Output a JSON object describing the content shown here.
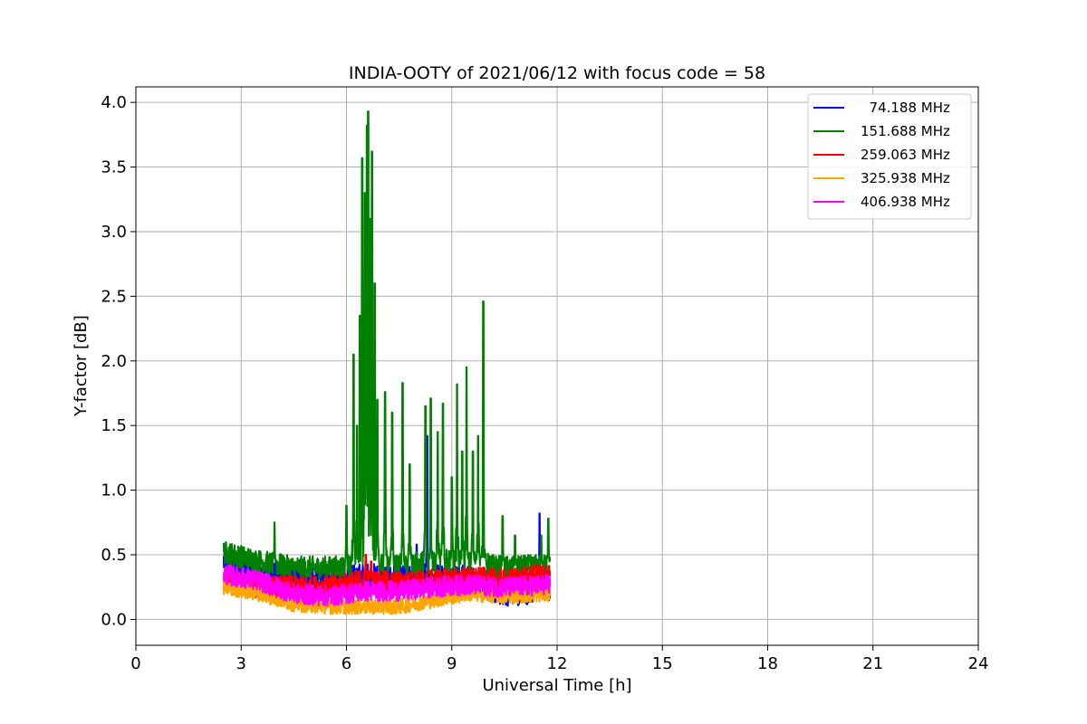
{
  "chart_data": {
    "type": "line",
    "title": "INDIA-OOTY of 2021/06/12 with focus code = 58",
    "xlabel": "Universal Time [h]",
    "ylabel": "Y-factor [dB]",
    "xlim": [
      0,
      24
    ],
    "ylim": [
      -0.2,
      4.12
    ],
    "xticks": [
      0,
      3,
      6,
      9,
      12,
      15,
      18,
      21,
      24
    ],
    "xtick_labels": [
      "0",
      "3",
      "6",
      "9",
      "12",
      "15",
      "18",
      "21",
      "24"
    ],
    "yticks": [
      0.0,
      0.5,
      1.0,
      1.5,
      2.0,
      2.5,
      3.0,
      3.5,
      4.0
    ],
    "ytick_labels": [
      "0.0",
      "0.5",
      "1.0",
      "1.5",
      "2.0",
      "2.5",
      "3.0",
      "3.5",
      "4.0"
    ],
    "grid": true,
    "legend_position": "top-right",
    "x_range_data": [
      2.5,
      11.8
    ],
    "series": [
      {
        "name": "  74.188 MHz",
        "color": "#0000ff",
        "base": [
          [
            2.5,
            0.45
          ],
          [
            3.5,
            0.35
          ],
          [
            4.5,
            0.3
          ],
          [
            5.5,
            0.28
          ],
          [
            6.5,
            0.32
          ],
          [
            7.5,
            0.3
          ],
          [
            8.5,
            0.32
          ],
          [
            9.5,
            0.3
          ],
          [
            10.5,
            0.22
          ],
          [
            11.8,
            0.25
          ]
        ],
        "noise": 0.12,
        "spikes": [
          [
            8.3,
            1.42
          ],
          [
            8.0,
            0.58
          ],
          [
            11.5,
            0.82
          ],
          [
            10.8,
            0.0
          ]
        ]
      },
      {
        "name": "151.688 MHz",
        "color": "#008000",
        "base": [
          [
            2.5,
            0.52
          ],
          [
            3.5,
            0.45
          ],
          [
            4.5,
            0.4
          ],
          [
            5.5,
            0.4
          ],
          [
            6.5,
            0.42
          ],
          [
            7.5,
            0.42
          ],
          [
            8.5,
            0.45
          ],
          [
            9.5,
            0.45
          ],
          [
            10.5,
            0.4
          ],
          [
            11.8,
            0.42
          ]
        ],
        "noise": 0.09,
        "spikes": [
          [
            3.95,
            0.75
          ],
          [
            6.0,
            0.88
          ],
          [
            6.2,
            2.05
          ],
          [
            6.3,
            1.5
          ],
          [
            6.38,
            2.35
          ],
          [
            6.45,
            3.57
          ],
          [
            6.52,
            3.3
          ],
          [
            6.58,
            3.82
          ],
          [
            6.62,
            3.93
          ],
          [
            6.68,
            3.1
          ],
          [
            6.73,
            3.62
          ],
          [
            6.8,
            2.6
          ],
          [
            6.88,
            1.7
          ],
          [
            7.1,
            1.76
          ],
          [
            7.3,
            1.6
          ],
          [
            7.6,
            1.83
          ],
          [
            7.8,
            1.2
          ],
          [
            8.25,
            1.65
          ],
          [
            8.4,
            1.71
          ],
          [
            8.6,
            1.45
          ],
          [
            8.75,
            1.67
          ],
          [
            9.0,
            1.1
          ],
          [
            9.15,
            1.82
          ],
          [
            9.3,
            1.3
          ],
          [
            9.42,
            1.95
          ],
          [
            9.6,
            1.3
          ],
          [
            9.75,
            1.42
          ],
          [
            9.9,
            2.46
          ],
          [
            10.45,
            0.8
          ],
          [
            10.8,
            0.65
          ],
          [
            11.55,
            0.65
          ],
          [
            11.75,
            0.78
          ]
        ]
      },
      {
        "name": "259.063 MHz",
        "color": "#ff0000",
        "base": [
          [
            2.5,
            0.3
          ],
          [
            3.5,
            0.25
          ],
          [
            4.5,
            0.25
          ],
          [
            5.5,
            0.25
          ],
          [
            6.5,
            0.3
          ],
          [
            7.5,
            0.28
          ],
          [
            8.5,
            0.3
          ],
          [
            9.5,
            0.32
          ],
          [
            10.5,
            0.3
          ],
          [
            11.8,
            0.35
          ]
        ],
        "noise": 0.09,
        "spikes": [
          [
            6.55,
            0.5
          ],
          [
            6.7,
            0.45
          ]
        ]
      },
      {
        "name": "325.938 MHz",
        "color": "#ffa500",
        "base": [
          [
            2.5,
            0.25
          ],
          [
            3.5,
            0.2
          ],
          [
            4.5,
            0.12
          ],
          [
            5.5,
            0.1
          ],
          [
            6.5,
            0.1
          ],
          [
            7.5,
            0.1
          ],
          [
            8.5,
            0.15
          ],
          [
            9.5,
            0.2
          ],
          [
            10.5,
            0.18
          ],
          [
            11.8,
            0.2
          ]
        ],
        "noise": 0.06,
        "spikes": []
      },
      {
        "name": "406.938 MHz",
        "color": "#ff00ff",
        "base": [
          [
            2.5,
            0.35
          ],
          [
            3.5,
            0.3
          ],
          [
            4.5,
            0.2
          ],
          [
            5.5,
            0.18
          ],
          [
            6.5,
            0.22
          ],
          [
            7.5,
            0.22
          ],
          [
            8.5,
            0.25
          ],
          [
            9.5,
            0.27
          ],
          [
            10.5,
            0.25
          ],
          [
            11.8,
            0.27
          ]
        ],
        "noise": 0.08,
        "spikes": []
      }
    ]
  }
}
